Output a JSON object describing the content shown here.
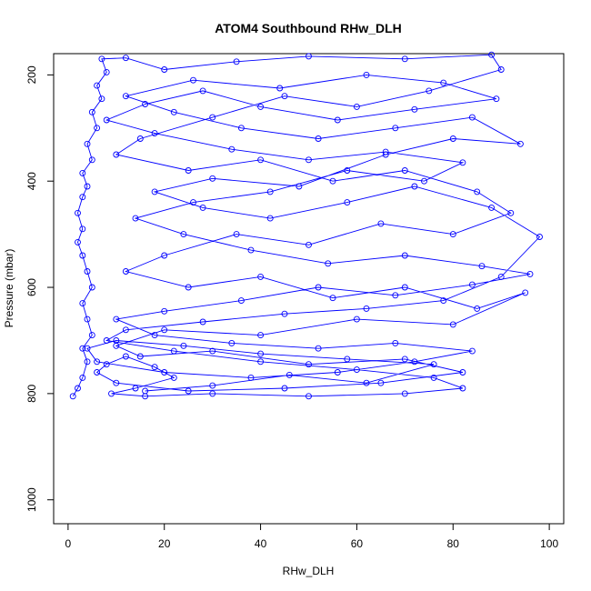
{
  "chart_data": {
    "type": "line",
    "title": "ATOM4 Southbound RHw_DLH",
    "xlabel": "RHw_DLH",
    "ylabel": "Pressure (mbar)",
    "xlim": [
      -3,
      103
    ],
    "ylim": [
      1045,
      160
    ],
    "y_reversed": true,
    "x_ticks": [
      0,
      20,
      40,
      60,
      80,
      100
    ],
    "y_ticks": [
      200,
      400,
      600,
      800,
      1000
    ],
    "grid": false,
    "legend": "none",
    "series": [
      {
        "color": "#0000ff",
        "markers": "open-circle",
        "points": [
          [
            1,
            805
          ],
          [
            2,
            790
          ],
          [
            3,
            770
          ],
          [
            4,
            740
          ],
          [
            3,
            715
          ],
          [
            5,
            690
          ],
          [
            4,
            660
          ],
          [
            3,
            630
          ],
          [
            5,
            600
          ],
          [
            4,
            570
          ],
          [
            3,
            540
          ],
          [
            2,
            515
          ],
          [
            3,
            490
          ],
          [
            2,
            460
          ],
          [
            3,
            430
          ],
          [
            4,
            410
          ],
          [
            3,
            385
          ],
          [
            5,
            360
          ],
          [
            4,
            330
          ],
          [
            6,
            300
          ],
          [
            5,
            270
          ],
          [
            7,
            245
          ],
          [
            6,
            220
          ],
          [
            8,
            195
          ],
          [
            7,
            170
          ],
          [
            12,
            168
          ],
          [
            20,
            190
          ],
          [
            35,
            175
          ],
          [
            50,
            165
          ],
          [
            70,
            170
          ],
          [
            88,
            162
          ],
          [
            90,
            190
          ],
          [
            75,
            230
          ],
          [
            60,
            260
          ],
          [
            45,
            240
          ],
          [
            30,
            280
          ],
          [
            15,
            320
          ],
          [
            10,
            350
          ],
          [
            25,
            380
          ],
          [
            40,
            360
          ],
          [
            55,
            400
          ],
          [
            70,
            380
          ],
          [
            85,
            420
          ],
          [
            92,
            460
          ],
          [
            80,
            500
          ],
          [
            65,
            480
          ],
          [
            50,
            520
          ],
          [
            35,
            500
          ],
          [
            20,
            540
          ],
          [
            12,
            570
          ],
          [
            25,
            600
          ],
          [
            40,
            580
          ],
          [
            55,
            620
          ],
          [
            70,
            600
          ],
          [
            85,
            640
          ],
          [
            95,
            610
          ],
          [
            80,
            670
          ],
          [
            60,
            660
          ],
          [
            40,
            690
          ],
          [
            20,
            680
          ],
          [
            10,
            710
          ],
          [
            15,
            730
          ],
          [
            30,
            720
          ],
          [
            50,
            745
          ],
          [
            70,
            735
          ],
          [
            82,
            760
          ],
          [
            65,
            780
          ],
          [
            45,
            790
          ],
          [
            25,
            795
          ],
          [
            10,
            780
          ],
          [
            6,
            760
          ],
          [
            8,
            745
          ],
          [
            12,
            730
          ],
          [
            18,
            750
          ],
          [
            22,
            770
          ],
          [
            14,
            790
          ],
          [
            9,
            800
          ],
          [
            16,
            805
          ],
          [
            30,
            800
          ],
          [
            50,
            805
          ],
          [
            70,
            800
          ],
          [
            82,
            790
          ],
          [
            76,
            770
          ],
          [
            60,
            755
          ],
          [
            40,
            740
          ],
          [
            22,
            720
          ],
          [
            8,
            700
          ],
          [
            12,
            680
          ],
          [
            28,
            665
          ],
          [
            45,
            650
          ],
          [
            62,
            640
          ],
          [
            78,
            625
          ],
          [
            90,
            580
          ],
          [
            98,
            505
          ],
          [
            88,
            450
          ],
          [
            72,
            410
          ],
          [
            58,
            440
          ],
          [
            42,
            470
          ],
          [
            28,
            450
          ],
          [
            18,
            420
          ],
          [
            30,
            395
          ],
          [
            48,
            410
          ],
          [
            66,
            350
          ],
          [
            80,
            320
          ],
          [
            94,
            330
          ],
          [
            84,
            280
          ],
          [
            68,
            300
          ],
          [
            52,
            320
          ],
          [
            36,
            300
          ],
          [
            22,
            270
          ],
          [
            12,
            240
          ],
          [
            26,
            210
          ],
          [
            44,
            225
          ],
          [
            62,
            200
          ],
          [
            78,
            215
          ],
          [
            89,
            245
          ],
          [
            72,
            265
          ],
          [
            56,
            285
          ],
          [
            40,
            260
          ],
          [
            28,
            230
          ],
          [
            16,
            255
          ],
          [
            8,
            285
          ],
          [
            18,
            310
          ],
          [
            34,
            340
          ],
          [
            50,
            360
          ],
          [
            66,
            345
          ],
          [
            82,
            365
          ],
          [
            74,
            400
          ],
          [
            58,
            380
          ],
          [
            42,
            420
          ],
          [
            26,
            440
          ],
          [
            14,
            470
          ],
          [
            24,
            500
          ],
          [
            38,
            530
          ],
          [
            54,
            555
          ],
          [
            70,
            540
          ],
          [
            86,
            560
          ],
          [
            96,
            575
          ],
          [
            84,
            595
          ],
          [
            68,
            615
          ],
          [
            52,
            600
          ],
          [
            36,
            625
          ],
          [
            20,
            645
          ],
          [
            10,
            660
          ],
          [
            18,
            690
          ],
          [
            34,
            705
          ],
          [
            52,
            715
          ],
          [
            68,
            705
          ],
          [
            84,
            720
          ],
          [
            72,
            740
          ],
          [
            56,
            760
          ],
          [
            38,
            770
          ],
          [
            20,
            760
          ],
          [
            6,
            740
          ],
          [
            4,
            715
          ],
          [
            10,
            700
          ],
          [
            24,
            710
          ],
          [
            40,
            725
          ],
          [
            58,
            735
          ],
          [
            76,
            745
          ],
          [
            62,
            780
          ],
          [
            46,
            765
          ],
          [
            30,
            785
          ],
          [
            16,
            795
          ]
        ]
      }
    ]
  }
}
